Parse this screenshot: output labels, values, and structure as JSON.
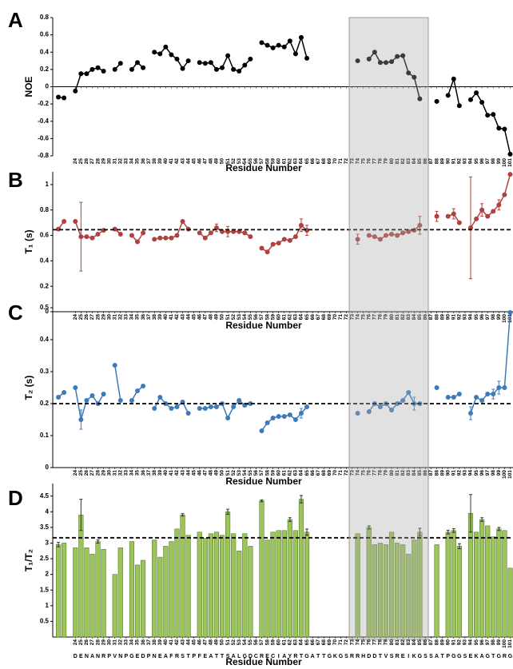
{
  "highlight_residues": [
    73,
    86
  ],
  "chart_data": [
    {
      "type": "line",
      "panel_label": "A",
      "ylabel": "NOE",
      "xlabel": "Residue Number",
      "color": "#000000",
      "x_axis_at_zero": true,
      "x": [
        21,
        22,
        23,
        24,
        25,
        26,
        27,
        28,
        29,
        30,
        31,
        32,
        33,
        34,
        35,
        36,
        37,
        38,
        39,
        40,
        41,
        42,
        43,
        44,
        45,
        46,
        47,
        48,
        49,
        50,
        51,
        52,
        53,
        54,
        55,
        56,
        57,
        58,
        59,
        60,
        61,
        62,
        63,
        64,
        65,
        66,
        67,
        68,
        69,
        70,
        71,
        72,
        73,
        74,
        75,
        76,
        77,
        78,
        79,
        80,
        81,
        82,
        83,
        84,
        85,
        86,
        87,
        88,
        89,
        90,
        91,
        92,
        93,
        94,
        95,
        96,
        97,
        98,
        99,
        100,
        101
      ],
      "values": [
        -0.12,
        -0.13,
        null,
        -0.05,
        0.15,
        0.15,
        0.2,
        0.22,
        0.18,
        null,
        0.2,
        0.27,
        null,
        0.2,
        0.28,
        0.22,
        null,
        0.4,
        0.38,
        0.46,
        0.37,
        0.32,
        0.21,
        0.3,
        null,
        0.28,
        0.27,
        0.28,
        0.2,
        0.22,
        0.36,
        0.2,
        0.18,
        0.25,
        0.32,
        null,
        0.51,
        0.48,
        0.45,
        0.48,
        0.46,
        0.53,
        0.38,
        0.57,
        0.33,
        null,
        null,
        null,
        null,
        null,
        null,
        null,
        null,
        0.3,
        null,
        0.32,
        0.4,
        0.28,
        0.28,
        0.29,
        0.35,
        0.36,
        0.16,
        0.11,
        -0.14,
        null,
        null,
        -0.17,
        null,
        -0.1,
        0.09,
        -0.22,
        null,
        -0.15,
        -0.07,
        -0.18,
        -0.33,
        -0.32,
        -0.48,
        -0.49,
        -0.78
      ],
      "xlim": [
        20,
        101.5
      ],
      "ylim": [
        -0.8,
        0.8
      ],
      "yticks": [
        -0.8,
        -0.6,
        -0.4,
        -0.2,
        0,
        0.2,
        0.4,
        0.6,
        0.8
      ],
      "xticks": [
        24,
        25,
        26,
        27,
        28,
        29,
        30,
        31,
        32,
        33,
        34,
        35,
        36,
        37,
        38,
        39,
        40,
        41,
        42,
        43,
        44,
        45,
        46,
        47,
        48,
        49,
        50,
        51,
        52,
        53,
        54,
        55,
        56,
        57,
        58,
        59,
        60,
        61,
        62,
        63,
        64,
        65,
        66,
        67,
        68,
        69,
        70,
        71,
        72,
        73,
        74,
        75,
        76,
        77,
        78,
        79,
        80,
        81,
        82,
        83,
        84,
        85,
        86,
        87,
        88,
        89,
        90,
        91,
        92,
        93,
        94,
        95,
        96,
        97,
        98,
        99,
        100,
        101
      ]
    },
    {
      "type": "line",
      "panel_label": "B",
      "ylabel": "T₁ (s)",
      "xlabel": "Residue Number",
      "color": "#b0413e",
      "reference_line": 0.645,
      "x": [
        21,
        22,
        23,
        24,
        25,
        26,
        27,
        28,
        29,
        30,
        31,
        32,
        33,
        34,
        35,
        36,
        37,
        38,
        39,
        40,
        41,
        42,
        43,
        44,
        45,
        46,
        47,
        48,
        49,
        50,
        51,
        52,
        53,
        54,
        55,
        56,
        57,
        58,
        59,
        60,
        61,
        62,
        63,
        64,
        65,
        66,
        67,
        68,
        69,
        70,
        71,
        72,
        73,
        74,
        75,
        76,
        77,
        78,
        79,
        80,
        81,
        82,
        83,
        84,
        85,
        86,
        87,
        88,
        89,
        90,
        91,
        92,
        93,
        94,
        95,
        96,
        97,
        98,
        99,
        100,
        101
      ],
      "values": [
        0.65,
        0.71,
        null,
        0.71,
        0.59,
        0.59,
        0.58,
        0.61,
        0.64,
        null,
        0.65,
        0.61,
        null,
        0.6,
        0.55,
        0.62,
        null,
        0.57,
        0.58,
        0.58,
        0.58,
        0.6,
        0.71,
        0.65,
        null,
        0.62,
        0.58,
        0.62,
        0.66,
        0.63,
        0.63,
        0.63,
        0.63,
        0.62,
        0.59,
        null,
        0.5,
        0.47,
        0.53,
        0.54,
        0.57,
        0.56,
        0.59,
        0.68,
        0.64,
        null,
        null,
        null,
        null,
        null,
        null,
        null,
        null,
        0.57,
        null,
        0.6,
        0.59,
        0.57,
        0.6,
        0.61,
        0.6,
        0.62,
        0.63,
        0.64,
        0.68,
        null,
        null,
        0.75,
        null,
        0.75,
        0.77,
        0.7,
        null,
        0.66,
        0.73,
        0.8,
        0.75,
        0.79,
        0.84,
        0.92,
        1.08
      ],
      "errors": [
        null,
        null,
        null,
        null,
        0.27,
        null,
        null,
        null,
        null,
        null,
        null,
        null,
        null,
        null,
        null,
        null,
        null,
        null,
        null,
        null,
        null,
        null,
        null,
        null,
        null,
        null,
        null,
        null,
        0.03,
        null,
        0.04,
        null,
        null,
        null,
        null,
        null,
        null,
        null,
        null,
        null,
        null,
        null,
        null,
        0.05,
        0.04,
        null,
        null,
        null,
        null,
        null,
        null,
        null,
        null,
        0.04,
        null,
        null,
        null,
        null,
        null,
        null,
        null,
        null,
        null,
        null,
        0.07,
        null,
        null,
        0.04,
        null,
        null,
        0.04,
        null,
        null,
        0.4,
        null,
        0.05,
        null,
        null,
        0.04,
        null,
        null
      ],
      "xlim": [
        20,
        101.5
      ],
      "ylim": [
        0,
        1.1
      ],
      "yticks": [
        0,
        0.2,
        0.4,
        0.6,
        0.8,
        1
      ],
      "xticks": [
        24,
        25,
        26,
        27,
        28,
        29,
        30,
        31,
        32,
        33,
        34,
        35,
        36,
        37,
        38,
        39,
        40,
        41,
        42,
        43,
        44,
        45,
        46,
        47,
        48,
        49,
        50,
        51,
        52,
        53,
        54,
        55,
        56,
        57,
        58,
        59,
        60,
        61,
        62,
        63,
        64,
        65,
        66,
        67,
        68,
        69,
        70,
        71,
        72,
        73,
        74,
        75,
        76,
        77,
        78,
        79,
        80,
        81,
        82,
        83,
        84,
        85,
        86,
        87,
        88,
        89,
        90,
        91,
        92,
        93,
        94,
        95,
        96,
        97,
        98,
        99,
        100,
        101
      ]
    },
    {
      "type": "line",
      "panel_label": "C",
      "ylabel": "T₂ (s)",
      "xlabel": "Residue Number",
      "color": "#3d7ab8",
      "reference_line": 0.2,
      "x": [
        21,
        22,
        23,
        24,
        25,
        26,
        27,
        28,
        29,
        30,
        31,
        32,
        33,
        34,
        35,
        36,
        37,
        38,
        39,
        40,
        41,
        42,
        43,
        44,
        45,
        46,
        47,
        48,
        49,
        50,
        51,
        52,
        53,
        54,
        55,
        56,
        57,
        58,
        59,
        60,
        61,
        62,
        63,
        64,
        65,
        66,
        67,
        68,
        69,
        70,
        71,
        72,
        73,
        74,
        75,
        76,
        77,
        78,
        79,
        80,
        81,
        82,
        83,
        84,
        85,
        86,
        87,
        88,
        89,
        90,
        91,
        92,
        93,
        94,
        95,
        96,
        97,
        98,
        99,
        100,
        101
      ],
      "values": [
        0.22,
        0.235,
        null,
        0.25,
        0.15,
        0.21,
        0.225,
        0.2,
        0.23,
        null,
        0.32,
        0.21,
        null,
        0.21,
        0.24,
        0.255,
        null,
        0.185,
        0.22,
        0.2,
        0.185,
        0.19,
        0.205,
        0.17,
        null,
        0.185,
        0.185,
        0.19,
        0.19,
        0.2,
        0.155,
        0.19,
        0.21,
        0.195,
        0.2,
        null,
        0.115,
        0.14,
        0.155,
        0.16,
        0.16,
        0.165,
        0.15,
        0.17,
        0.19,
        null,
        null,
        null,
        null,
        null,
        null,
        null,
        null,
        0.17,
        null,
        0.175,
        0.2,
        0.19,
        0.2,
        0.18,
        0.2,
        0.21,
        0.235,
        0.2,
        0.2,
        null,
        null,
        0.25,
        null,
        0.22,
        0.22,
        0.23,
        null,
        0.17,
        0.22,
        0.21,
        0.23,
        0.23,
        0.25,
        0.25,
        0.485
      ],
      "errors": [
        null,
        null,
        null,
        null,
        0.03,
        null,
        null,
        null,
        null,
        null,
        null,
        null,
        null,
        null,
        null,
        null,
        null,
        null,
        null,
        null,
        null,
        null,
        null,
        null,
        null,
        null,
        null,
        null,
        null,
        null,
        null,
        null,
        null,
        null,
        null,
        null,
        null,
        null,
        null,
        null,
        null,
        null,
        null,
        0.015,
        null,
        null,
        null,
        null,
        null,
        null,
        null,
        null,
        null,
        null,
        null,
        null,
        null,
        null,
        null,
        null,
        null,
        null,
        null,
        0.02,
        null,
        null,
        null,
        null,
        null,
        null,
        null,
        null,
        null,
        0.02,
        null,
        null,
        null,
        0.015,
        0.02,
        null,
        null
      ],
      "xlim": [
        20,
        101.5
      ],
      "ylim": [
        0,
        0.5
      ],
      "yticks": [
        0,
        0.1,
        0.2,
        0.3,
        0.4,
        0.5
      ],
      "xticks": [
        24,
        25,
        26,
        27,
        28,
        29,
        30,
        31,
        32,
        33,
        34,
        35,
        36,
        37,
        38,
        39,
        40,
        41,
        42,
        43,
        44,
        45,
        46,
        47,
        48,
        49,
        50,
        51,
        52,
        53,
        54,
        55,
        56,
        57,
        58,
        59,
        60,
        61,
        62,
        63,
        64,
        65,
        66,
        67,
        68,
        69,
        70,
        71,
        72,
        73,
        74,
        75,
        76,
        77,
        78,
        79,
        80,
        81,
        82,
        83,
        84,
        85,
        86,
        87,
        88,
        89,
        90,
        91,
        92,
        93,
        94,
        95,
        96,
        97,
        98,
        99,
        100,
        101
      ]
    },
    {
      "type": "bar",
      "panel_label": "D",
      "ylabel": "T₁/T₂",
      "xlabel": "Residue Number",
      "color": "#9bc45a",
      "reference_line": 3.17,
      "x": [
        21,
        22,
        23,
        24,
        25,
        26,
        27,
        28,
        29,
        30,
        31,
        32,
        33,
        34,
        35,
        36,
        37,
        38,
        39,
        40,
        41,
        42,
        43,
        44,
        45,
        46,
        47,
        48,
        49,
        50,
        51,
        52,
        53,
        54,
        55,
        56,
        57,
        58,
        59,
        60,
        61,
        62,
        63,
        64,
        65,
        66,
        67,
        68,
        69,
        70,
        71,
        72,
        73,
        74,
        75,
        76,
        77,
        78,
        79,
        80,
        81,
        82,
        83,
        84,
        85,
        86,
        87,
        88,
        89,
        90,
        91,
        92,
        93,
        94,
        95,
        96,
        97,
        98,
        99,
        100,
        101
      ],
      "values": [
        2.95,
        3.0,
        null,
        2.85,
        3.9,
        2.85,
        2.65,
        3.05,
        2.8,
        null,
        2.0,
        2.85,
        null,
        3.05,
        2.3,
        2.45,
        null,
        3.1,
        2.55,
        2.9,
        3.05,
        3.45,
        3.9,
        3.25,
        null,
        3.35,
        3.15,
        3.3,
        3.35,
        3.25,
        4.0,
        3.3,
        2.75,
        3.3,
        2.9,
        null,
        4.35,
        3.1,
        3.35,
        3.4,
        3.4,
        3.75,
        3.4,
        4.4,
        3.35,
        null,
        null,
        null,
        null,
        null,
        null,
        null,
        null,
        3.3,
        null,
        3.5,
        2.95,
        3.0,
        2.95,
        3.35,
        3.0,
        2.95,
        2.65,
        3.1,
        3.35,
        null,
        null,
        2.95,
        null,
        3.35,
        3.4,
        2.9,
        null,
        3.95,
        3.35,
        3.75,
        3.55,
        3.2,
        3.45,
        3.4,
        2.2
      ],
      "errors": [
        0.07,
        null,
        null,
        null,
        0.5,
        null,
        null,
        0.05,
        null,
        null,
        null,
        null,
        null,
        null,
        null,
        null,
        null,
        null,
        null,
        null,
        null,
        null,
        0.04,
        null,
        null,
        null,
        null,
        null,
        null,
        null,
        0.08,
        null,
        null,
        null,
        null,
        null,
        0.03,
        null,
        null,
        null,
        null,
        0.06,
        null,
        0.12,
        0.1,
        null,
        null,
        null,
        null,
        null,
        null,
        null,
        null,
        null,
        null,
        0.05,
        null,
        null,
        null,
        null,
        null,
        null,
        null,
        null,
        0.12,
        null,
        null,
        null,
        null,
        0.06,
        0.06,
        0.08,
        null,
        0.6,
        null,
        0.06,
        null,
        null,
        0.05,
        null,
        null
      ],
      "xlim": [
        20,
        101.5
      ],
      "ylim": [
        0,
        4.9
      ],
      "yticks": [
        0.5,
        1,
        1.5,
        2,
        2.5,
        3,
        3.5,
        4,
        4.5
      ],
      "xticks": [
        24,
        25,
        26,
        27,
        28,
        29,
        30,
        31,
        32,
        33,
        34,
        35,
        36,
        37,
        38,
        39,
        40,
        41,
        42,
        43,
        44,
        45,
        46,
        47,
        48,
        49,
        50,
        51,
        52,
        53,
        54,
        55,
        56,
        57,
        58,
        59,
        60,
        61,
        62,
        63,
        64,
        65,
        66,
        67,
        68,
        69,
        70,
        71,
        72,
        73,
        74,
        75,
        76,
        77,
        78,
        79,
        80,
        81,
        82,
        83,
        84,
        85,
        86,
        87,
        88,
        89,
        90,
        91,
        92,
        93,
        94,
        95,
        96,
        97,
        98,
        99,
        100,
        101
      ],
      "sequence": [
        "D",
        "E",
        "N",
        "A",
        "N",
        "R",
        "P",
        "V",
        "N",
        "P",
        "G",
        "E",
        "D",
        "P",
        "N",
        "E",
        "A",
        "F",
        "R",
        "S",
        "T",
        "P",
        "F",
        "E",
        "A",
        "T",
        "T",
        "S",
        "A",
        "L",
        "G",
        "D",
        "C",
        "R",
        "E",
        "C",
        "I",
        "A",
        "Y",
        "R",
        "T",
        "G",
        "A",
        "T",
        "T",
        "G",
        "K",
        "G",
        "S",
        "R",
        "R",
        "H",
        "D",
        "D",
        "T",
        "V",
        "S",
        "R",
        "E",
        "I",
        "K",
        "G",
        "S",
        "S",
        "A",
        "T",
        "P",
        "G",
        "G",
        "S",
        "E",
        "K",
        "A",
        "G",
        "T",
        "G",
        "R",
        "G"
      ]
    }
  ]
}
